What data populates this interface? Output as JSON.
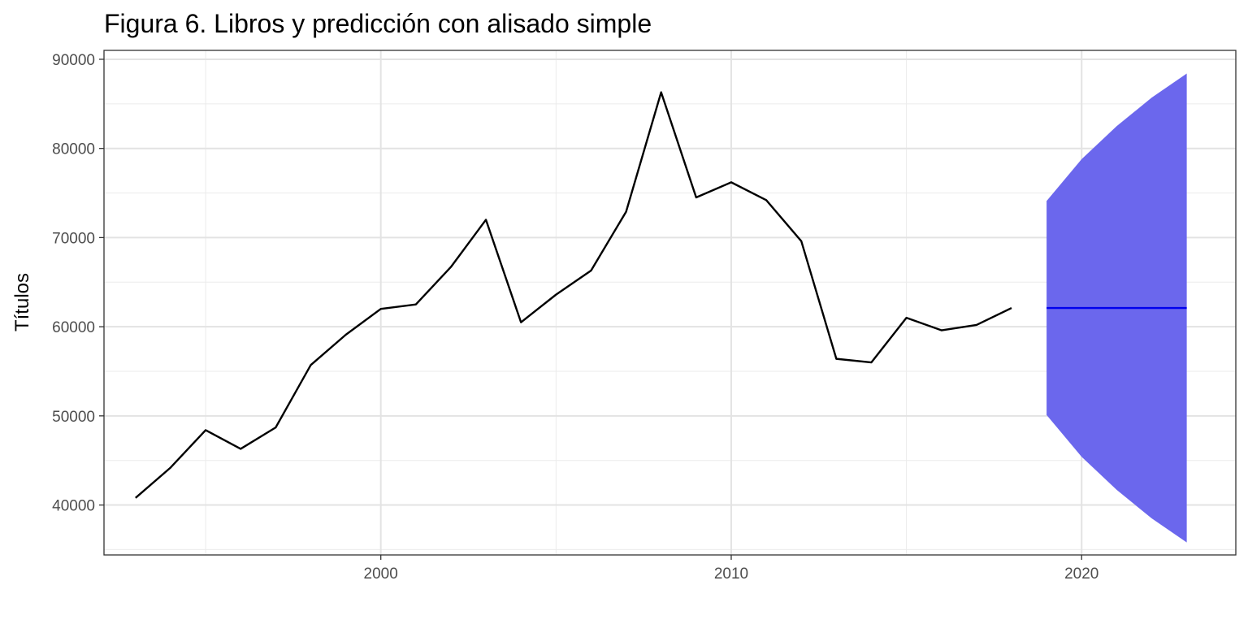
{
  "chart_data": {
    "type": "line",
    "title": "Figura 6. Libros y predicción con alisado simple",
    "xlabel": "",
    "ylabel": "Títulos",
    "xlim": [
      1992.1,
      2024.4
    ],
    "ylim": [
      34400,
      91000
    ],
    "x_ticks": [
      2000,
      2010,
      2020
    ],
    "x_tick_labels": [
      "2000",
      "2010",
      "2020"
    ],
    "x_minor_ticks": [
      1995,
      2005,
      2015
    ],
    "y_ticks": [
      40000,
      50000,
      60000,
      70000,
      80000,
      90000
    ],
    "y_tick_labels": [
      "40000",
      "50000",
      "60000",
      "70000",
      "80000",
      "90000"
    ],
    "y_minor_ticks": [
      35000,
      45000,
      55000,
      65000,
      75000,
      85000
    ],
    "grid": true,
    "legend": "none",
    "series": [
      {
        "x": [
          1993,
          1994,
          1995,
          1996,
          1997,
          1998,
          1999,
          2000,
          2001,
          2002,
          2003,
          2004,
          2005,
          2006,
          2007,
          2008,
          2009,
          2010,
          2011,
          2012,
          2013,
          2014,
          2015,
          2016,
          2017,
          2018
        ],
        "values": [
          40800,
          44200,
          48400,
          46300,
          48700,
          55700,
          59100,
          62000,
          62500,
          66700,
          72000,
          60500,
          63600,
          66300,
          72900,
          86300,
          74500,
          76200,
          74200,
          69600,
          56400,
          56000,
          61000,
          59600,
          60200,
          62100
        ],
        "color": "#000000"
      }
    ],
    "forecast": {
      "x": [
        2019,
        2020,
        2021,
        2022,
        2023
      ],
      "mean": [
        62100,
        62100,
        62100,
        62100,
        62100
      ],
      "upper": [
        74100,
        78800,
        82500,
        85700,
        88400
      ],
      "lower": [
        50100,
        45400,
        41700,
        38500,
        35800
      ],
      "mean_color": "#0000ee",
      "band_color": "#6b67ed"
    }
  }
}
